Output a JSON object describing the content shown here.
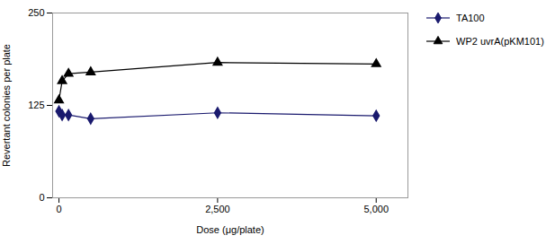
{
  "chart_data": {
    "type": "line",
    "x": [
      0,
      50,
      150,
      500,
      2500,
      5000
    ],
    "series": [
      {
        "name": "TA100",
        "color": "#1a1a6e",
        "marker": "diamond",
        "values": [
          117,
          112,
          112,
          107,
          115,
          111
        ]
      },
      {
        "name": "WP2 uvrA(pKM101)",
        "color": "#000000",
        "marker": "triangle",
        "values": [
          132,
          158,
          168,
          170,
          183,
          181
        ]
      }
    ],
    "xlim": [
      -100,
      5500
    ],
    "xticks": [
      0,
      {
        "value": 2500,
        "label": "2,500"
      },
      {
        "value": 5000,
        "label": "5,000"
      }
    ],
    "ylim": [
      0,
      250
    ],
    "yticks": [
      0,
      125,
      250
    ],
    "xlabel": "Dose (μg/plate)",
    "ylabel": "Revertant colonies per plate",
    "grid": false,
    "legend": "right"
  }
}
